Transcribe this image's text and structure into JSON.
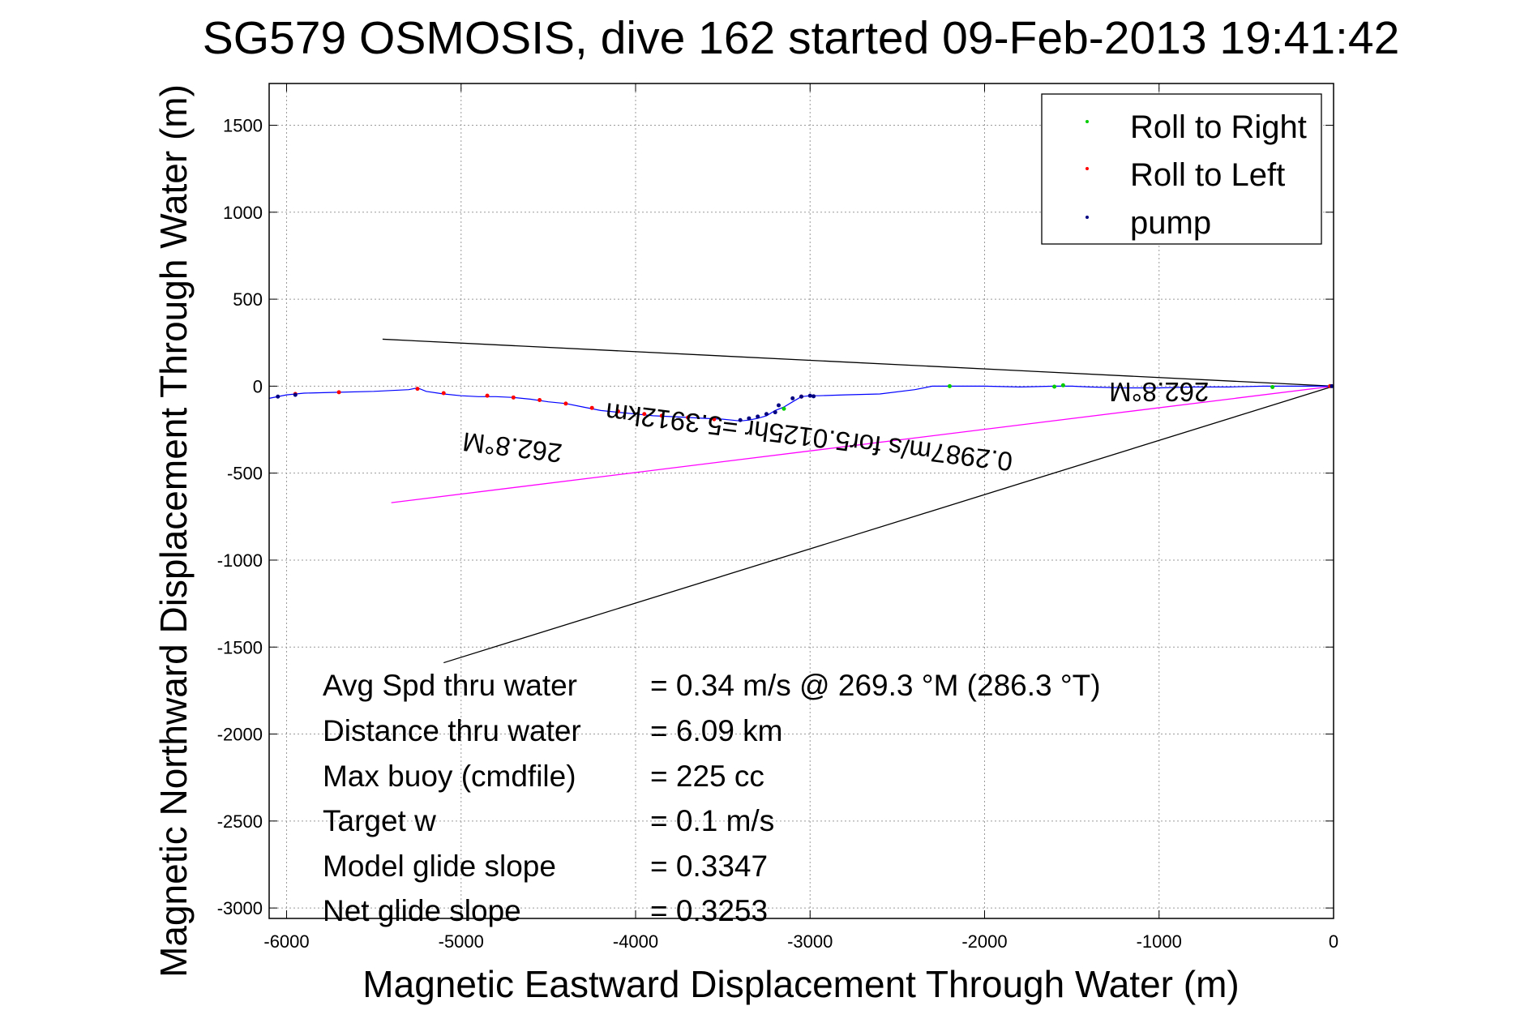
{
  "chart_data": {
    "type": "line",
    "title": "SG579 OSMOSIS, dive 162 started 09-Feb-2013 19:41:42",
    "xlabel": "Magnetic Eastward Displacement Through Water (m)",
    "ylabel": "Magnetic Northward Displacement Through Water (m)",
    "xlim": [
      -6100,
      0
    ],
    "ylim": [
      -3060,
      1740
    ],
    "xticks": [
      -6000,
      -5000,
      -4000,
      -3000,
      -2000,
      -1000,
      0
    ],
    "yticks": [
      1500,
      1000,
      500,
      0,
      -500,
      -1000,
      -1500,
      -2000,
      -2500,
      -3000
    ],
    "grid": true,
    "legend_position": "top-right",
    "legend": [
      {
        "label": "Roll to Right",
        "color": "#00cc00"
      },
      {
        "label": "Roll to Left",
        "color": "#ff0000"
      },
      {
        "label": "pump",
        "color": "#000080"
      }
    ],
    "track": {
      "name": "",
      "color": "#0000ff",
      "x": [
        -6100,
        -6000,
        -5900,
        -5700,
        -5500,
        -5300,
        -5250,
        -5200,
        -5100,
        -5000,
        -4900,
        -4800,
        -4700,
        -4600,
        -4500,
        -4400,
        -4300,
        -4200,
        -4100,
        -4000,
        -3900,
        -3800,
        -3700,
        -3600,
        -3500,
        -3450,
        -3400,
        -3350,
        -3300,
        -3250,
        -3200,
        -3150,
        -3100,
        -3050,
        -3000,
        -2950,
        -2800,
        -2600,
        -2400,
        -2300,
        -2200,
        -2000,
        -1800,
        -1600,
        -1500,
        -1400,
        -1200,
        -1000,
        -800,
        -600,
        -400,
        -200,
        0
      ],
      "y": [
        -70,
        -50,
        -40,
        -35,
        -30,
        -20,
        -10,
        -30,
        -45,
        -55,
        -60,
        -60,
        -65,
        -75,
        -90,
        -100,
        -120,
        -140,
        -150,
        -160,
        -170,
        -175,
        -180,
        -185,
        -190,
        -195,
        -200,
        -195,
        -185,
        -170,
        -140,
        -120,
        -90,
        -60,
        -55,
        -55,
        -50,
        -45,
        -20,
        0,
        0,
        0,
        -5,
        0,
        0,
        -5,
        -10,
        -10,
        -5,
        -5,
        0,
        0,
        0
      ]
    },
    "roll_right_points": {
      "x": [
        -3150,
        -2200,
        -1600,
        -1550,
        -350,
        -20
      ],
      "y": [
        -130,
        0,
        -3,
        5,
        -5,
        0
      ]
    },
    "roll_left_points": {
      "x": [
        -5950,
        -5700,
        -5250,
        -5100,
        -4850,
        -4700,
        -4550,
        -4400,
        -4250,
        -4100,
        -3950,
        -3850,
        -3700,
        -3550,
        -3050,
        -20
      ],
      "y": [
        -45,
        -35,
        -15,
        -40,
        -55,
        -65,
        -80,
        -100,
        -125,
        -145,
        -160,
        -170,
        -180,
        -190,
        -60,
        0
      ]
    },
    "pump_points": {
      "x": [
        -6050,
        -5950,
        -3400,
        -3350,
        -3300,
        -3250,
        -3200,
        -3180,
        -3100,
        -3050,
        -3000,
        -2980,
        -10
      ],
      "y": [
        -60,
        -50,
        -195,
        -185,
        -175,
        -160,
        -150,
        -110,
        -70,
        -60,
        -55,
        -58,
        0
      ]
    },
    "lines": [
      {
        "name": "",
        "color": "#000000",
        "x": [
          0,
          -5450
        ],
        "y": [
          0,
          270
        ]
      },
      {
        "name": "",
        "color": "#000000",
        "x": [
          0,
          -5100
        ],
        "y": [
          0,
          -1590
        ]
      },
      {
        "name": "",
        "color": "#ff00ff",
        "x": [
          0,
          -5400
        ],
        "y": [
          0,
          -670
        ]
      }
    ],
    "annotations": [
      {
        "text": "262.8°M",
        "x": -1000,
        "y": 20,
        "rotation": 180
      },
      {
        "text": "0.2987m/s for5.0125hr =5.3912km",
        "x": -3000,
        "y": -240,
        "rotation": 187
      },
      {
        "text": "262.8°M",
        "x": -4700,
        "y": -300,
        "rotation": 187
      }
    ],
    "stats": [
      {
        "label": "Avg Spd thru water",
        "value": "=  0.34 m/s @ 269.3 °M (286.3 °T)"
      },
      {
        "label": "Distance thru water",
        "value": "=  6.09 km"
      },
      {
        "label": "Max buoy (cmdfile)",
        "value": "= 225 cc"
      },
      {
        "label": "Target w",
        "value": "= 0.1 m/s"
      },
      {
        "label": "Model glide slope",
        "value": "= 0.3347"
      },
      {
        "label": "Net glide slope",
        "value": "= 0.3253"
      }
    ]
  }
}
